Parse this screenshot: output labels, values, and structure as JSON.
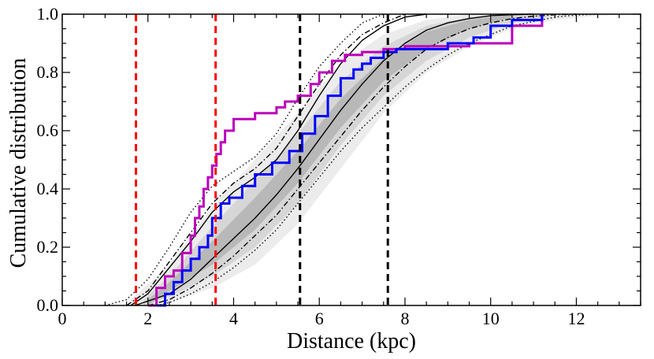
{
  "chart_data": {
    "type": "line",
    "title": "",
    "xlabel": "Distance (kpc)",
    "ylabel": "Cumulative distribution",
    "xlim": [
      0,
      13.5
    ],
    "ylim": [
      0,
      1.0
    ],
    "xticks": [
      0,
      2,
      4,
      6,
      8,
      10,
      12
    ],
    "xtick_labels": [
      "0",
      "2",
      "4",
      "6",
      "8",
      "10",
      "12"
    ],
    "yticks": [
      0,
      0.2,
      0.4,
      0.6,
      0.8,
      1.0
    ],
    "ytick_labels": [
      "0.0",
      "0.2",
      "0.4",
      "0.6",
      "0.8",
      "1.0"
    ],
    "colors": {
      "red_vline": "#ff0000",
      "black_vline": "#000000",
      "magenta": "#bb00bb",
      "blue": "#0000ff",
      "band_outer": "#ececec",
      "band_mid": "#d6d6d6",
      "band_inner": "#b8b8b8"
    },
    "vlines": [
      {
        "name": "red-vline-1",
        "x": 1.72,
        "color": "red"
      },
      {
        "name": "red-vline-2",
        "x": 3.58,
        "color": "red"
      },
      {
        "name": "black-vline-1",
        "x": 5.55,
        "color": "black"
      },
      {
        "name": "black-vline-2",
        "x": 7.6,
        "color": "black"
      }
    ],
    "bands": [
      {
        "name": "outer-band",
        "x": [
          1.6,
          2.5,
          3.5,
          4.5,
          5.5,
          6.5,
          7.5,
          8.5,
          9.5,
          10.5,
          11.5,
          12.5,
          13.5
        ],
        "lower": [
          0,
          0.01,
          0.06,
          0.14,
          0.28,
          0.47,
          0.66,
          0.8,
          0.89,
          0.95,
          0.98,
          0.995,
          1.0
        ],
        "upper": [
          0.02,
          0.14,
          0.34,
          0.5,
          0.66,
          0.83,
          0.93,
          0.98,
          1.0,
          1.0,
          1.0,
          1.0,
          1.0
        ]
      },
      {
        "name": "mid-band",
        "x": [
          1.9,
          2.5,
          3.5,
          4.5,
          5.5,
          6.5,
          7.5,
          8.5,
          9.5,
          10.5,
          11.5
        ],
        "lower": [
          0,
          0.03,
          0.1,
          0.2,
          0.35,
          0.55,
          0.72,
          0.84,
          0.92,
          0.97,
          0.995
        ],
        "upper": [
          0.02,
          0.1,
          0.27,
          0.43,
          0.59,
          0.77,
          0.89,
          0.96,
          0.99,
          1.0,
          1.0
        ]
      },
      {
        "name": "inner-band",
        "x": [
          2.0,
          2.5,
          3.5,
          4.5,
          5.5,
          6.5,
          7.5,
          8.5,
          9.5,
          10.5
        ],
        "lower": [
          0,
          0.05,
          0.14,
          0.26,
          0.42,
          0.61,
          0.77,
          0.88,
          0.95,
          0.99
        ],
        "upper": [
          0.02,
          0.08,
          0.22,
          0.37,
          0.53,
          0.71,
          0.85,
          0.94,
          0.98,
          1.0
        ]
      }
    ],
    "series": [
      {
        "name": "model-median",
        "style": "solid",
        "x": [
          1.7,
          2.5,
          3.0,
          3.5,
          4.0,
          4.5,
          5.0,
          5.5,
          6.0,
          6.5,
          7.0,
          7.5,
          8.0,
          8.5,
          9.0,
          9.5,
          10.0,
          10.5,
          11.0
        ],
        "y": [
          0,
          0.04,
          0.09,
          0.16,
          0.23,
          0.3,
          0.38,
          0.47,
          0.57,
          0.67,
          0.76,
          0.84,
          0.9,
          0.945,
          0.97,
          0.985,
          0.995,
          0.998,
          1.0
        ]
      },
      {
        "name": "model-inner-upper",
        "style": "solid",
        "x": [
          1.6,
          2.0,
          2.5,
          3.0,
          3.5,
          4.0,
          4.5,
          5.0,
          5.5,
          6.0,
          6.5,
          7.0,
          7.5,
          8.0,
          8.5
        ],
        "y": [
          0,
          0.04,
          0.13,
          0.22,
          0.32,
          0.39,
          0.44,
          0.5,
          0.6,
          0.72,
          0.83,
          0.91,
          0.96,
          0.99,
          1.0
        ]
      },
      {
        "name": "model-dashdot-upper",
        "style": "dashdot",
        "x": [
          1.5,
          2.0,
          2.5,
          3.0,
          3.5,
          4.0,
          4.5,
          5.0,
          5.5,
          6.0,
          6.5,
          7.0,
          7.5,
          8.0
        ],
        "y": [
          0,
          0.05,
          0.15,
          0.25,
          0.35,
          0.42,
          0.47,
          0.54,
          0.65,
          0.76,
          0.86,
          0.93,
          0.97,
          1.0
        ]
      },
      {
        "name": "model-dashdot-lower",
        "style": "dashdot",
        "x": [
          2.0,
          2.5,
          3.0,
          3.5,
          4.0,
          4.5,
          5.0,
          5.5,
          6.0,
          6.5,
          7.0,
          7.5,
          8.0,
          8.5,
          9.0,
          9.5,
          10.0,
          10.5,
          11.0,
          11.5,
          12.0
        ],
        "y": [
          0,
          0.02,
          0.06,
          0.11,
          0.17,
          0.24,
          0.31,
          0.4,
          0.49,
          0.58,
          0.67,
          0.75,
          0.82,
          0.88,
          0.92,
          0.95,
          0.97,
          0.985,
          0.993,
          0.998,
          1.0
        ]
      },
      {
        "name": "model-dotted-upper",
        "style": "dotted",
        "x": [
          1.0,
          1.5,
          2.0,
          2.5,
          3.0,
          3.5,
          4.0,
          4.5,
          5.0,
          5.5,
          6.0,
          6.5,
          7.0,
          7.5
        ],
        "y": [
          0,
          0.02,
          0.09,
          0.2,
          0.32,
          0.41,
          0.46,
          0.51,
          0.59,
          0.71,
          0.82,
          0.9,
          0.97,
          1.0
        ]
      },
      {
        "name": "model-dotted-lower",
        "style": "dotted",
        "x": [
          2.2,
          2.5,
          3.0,
          3.5,
          4.0,
          4.5,
          5.0,
          5.5,
          6.0,
          6.5,
          7.0,
          7.5,
          8.0,
          8.5,
          9.0,
          9.5,
          10.0,
          10.5,
          11.0,
          11.5,
          12.0,
          12.5
        ],
        "y": [
          0,
          0.01,
          0.04,
          0.08,
          0.13,
          0.19,
          0.26,
          0.35,
          0.44,
          0.53,
          0.61,
          0.68,
          0.75,
          0.81,
          0.86,
          0.9,
          0.93,
          0.96,
          0.975,
          0.99,
          0.997,
          1.0
        ]
      },
      {
        "name": "observed-magenta",
        "style": "step",
        "color": "magenta",
        "x": [
          2.0,
          2.2,
          2.4,
          2.6,
          2.8,
          3.0,
          3.1,
          3.2,
          3.3,
          3.4,
          3.5,
          3.6,
          3.7,
          3.8,
          4.0,
          4.5,
          5.0,
          5.2,
          5.5,
          5.8,
          6.0,
          6.3,
          6.6,
          7.0,
          7.5,
          8.0,
          8.7,
          9.5,
          10.5,
          11.2
        ],
        "y": [
          0,
          0.06,
          0.1,
          0.12,
          0.18,
          0.24,
          0.3,
          0.34,
          0.4,
          0.44,
          0.48,
          0.52,
          0.56,
          0.6,
          0.64,
          0.66,
          0.68,
          0.7,
          0.72,
          0.76,
          0.8,
          0.84,
          0.86,
          0.87,
          0.88,
          0.89,
          0.89,
          0.9,
          0.96,
          1.0
        ]
      },
      {
        "name": "observed-blue",
        "style": "step",
        "color": "blue",
        "x": [
          2.2,
          2.4,
          2.6,
          2.8,
          3.0,
          3.2,
          3.4,
          3.5,
          3.7,
          3.9,
          4.2,
          4.5,
          4.9,
          5.3,
          5.6,
          5.9,
          6.2,
          6.5,
          6.8,
          7.0,
          7.2,
          7.5,
          7.8,
          8.2,
          9.0,
          9.6,
          10.0,
          10.5,
          11.2
        ],
        "y": [
          0,
          0.04,
          0.08,
          0.12,
          0.16,
          0.2,
          0.24,
          0.3,
          0.35,
          0.37,
          0.41,
          0.45,
          0.49,
          0.53,
          0.59,
          0.65,
          0.72,
          0.78,
          0.81,
          0.83,
          0.85,
          0.87,
          0.88,
          0.88,
          0.9,
          0.92,
          0.96,
          0.98,
          1.0
        ]
      }
    ]
  }
}
